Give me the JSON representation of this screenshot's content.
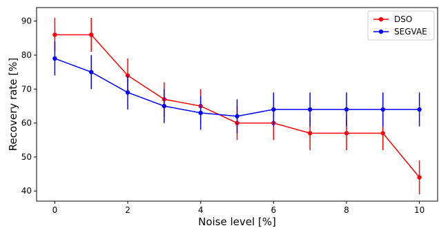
{
  "chart_data": {
    "type": "line",
    "title": "",
    "xlabel": "Noise level [%]",
    "ylabel": "Recovery rate [%]",
    "xlim": [
      -0.5,
      10.5
    ],
    "ylim": [
      37,
      94
    ],
    "xticks": [
      0,
      2,
      4,
      6,
      8,
      10
    ],
    "yticks": [
      40,
      50,
      60,
      70,
      80,
      90
    ],
    "grid": false,
    "legend_position": "top-right",
    "x": [
      0,
      1,
      2,
      3,
      4,
      5,
      6,
      7,
      8,
      9,
      10
    ],
    "series": [
      {
        "name": "DSO",
        "color": "#ff0000",
        "values": [
          86,
          86,
          74,
          67,
          65,
          60,
          60,
          57,
          57,
          57,
          44
        ],
        "errors": [
          5,
          5,
          5,
          5,
          5,
          5,
          5,
          5,
          5,
          5,
          5
        ]
      },
      {
        "name": "SEGVAE",
        "color": "#0000ff",
        "values": [
          79,
          75,
          69,
          65,
          63,
          62,
          64,
          64,
          64,
          64,
          64
        ],
        "errors": [
          5,
          5,
          5,
          5,
          5,
          5,
          5,
          5,
          5,
          5,
          5
        ]
      }
    ]
  }
}
